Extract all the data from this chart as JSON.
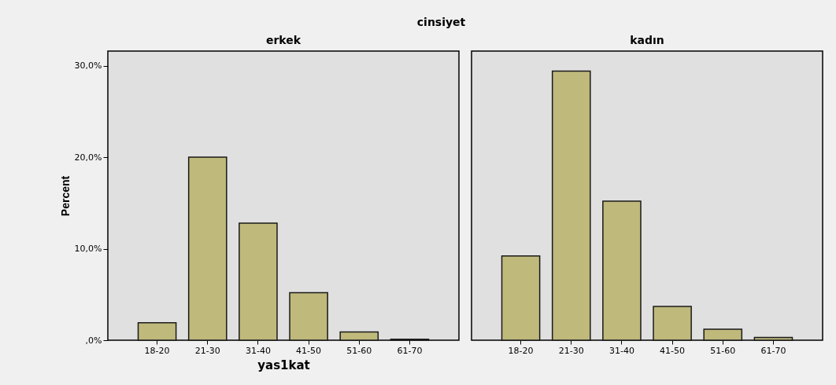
{
  "chart_data": [
    {
      "type": "bar",
      "title": "erkek",
      "annotations": [
        "cinsiyet"
      ],
      "xlabel": "yas1kat",
      "ylabel": "Percent",
      "categories": [
        "18-20",
        "21-30",
        "31-40",
        "41-50",
        "51-60",
        "61-70"
      ],
      "values": [
        1.9,
        20.0,
        12.8,
        5.2,
        0.9,
        0.1
      ],
      "color": "#bfb97c",
      "ylim": [
        0,
        31.6
      ],
      "yticks": [
        {
          "value": 0,
          "label": ",0%"
        },
        {
          "value": 10,
          "label": "10,0%"
        },
        {
          "value": 20,
          "label": "20,0%"
        },
        {
          "value": 30,
          "label": "30,0%"
        }
      ],
      "grid": false
    },
    {
      "type": "bar",
      "title": "kadın",
      "categories": [
        "18-20",
        "21-30",
        "31-40",
        "41-50",
        "51-60",
        "61-70"
      ],
      "values": [
        9.2,
        29.4,
        15.2,
        3.7,
        1.2,
        0.3
      ],
      "color": "#bfb97c",
      "ylim": [
        0,
        31.6
      ],
      "tick_labels": "x",
      "grid": false
    }
  ]
}
